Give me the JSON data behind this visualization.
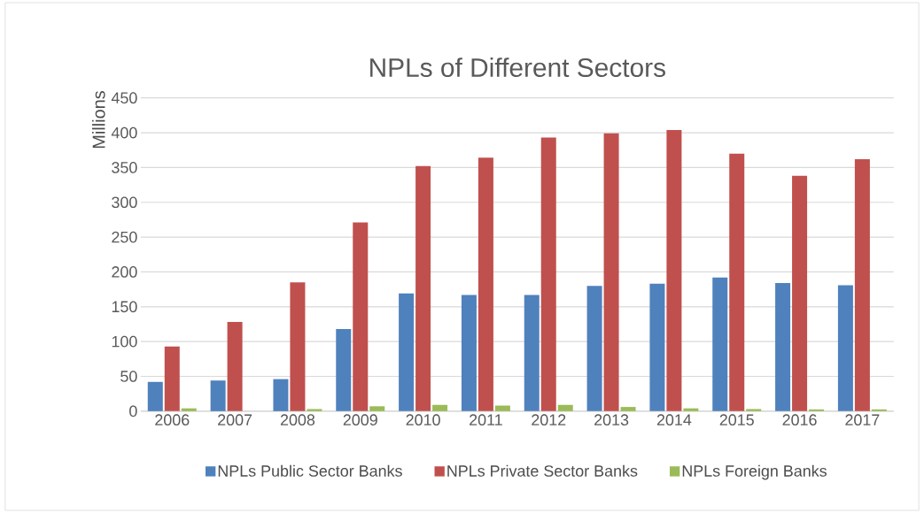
{
  "chart_data": {
    "type": "bar",
    "title": "NPLs of Different Sectors",
    "ylabel": "Millions",
    "categories": [
      "2006",
      "2007",
      "2008",
      "2009",
      "2010",
      "2011",
      "2012",
      "2013",
      "2014",
      "2015",
      "2016",
      "2017"
    ],
    "series": [
      {
        "name": "NPLs Public Sector Banks",
        "color": "#4f81bd",
        "values": [
          42,
          44,
          46,
          118,
          169,
          167,
          167,
          180,
          183,
          192,
          184,
          181
        ]
      },
      {
        "name": "NPLs Private Sector Banks",
        "color": "#c0504d",
        "values": [
          93,
          128,
          185,
          271,
          352,
          364,
          393,
          399,
          404,
          370,
          338,
          362
        ]
      },
      {
        "name": "NPLs Foreign Banks",
        "color": "#9bbb59",
        "values": [
          4,
          0,
          3,
          7,
          9,
          8,
          9,
          6,
          4,
          3,
          2.5,
          2.5
        ]
      }
    ],
    "ylim": [
      0,
      450
    ],
    "yticks": [
      0,
      50,
      100,
      150,
      200,
      250,
      300,
      350,
      400,
      450
    ],
    "grid": "y",
    "legend": "bottom"
  }
}
